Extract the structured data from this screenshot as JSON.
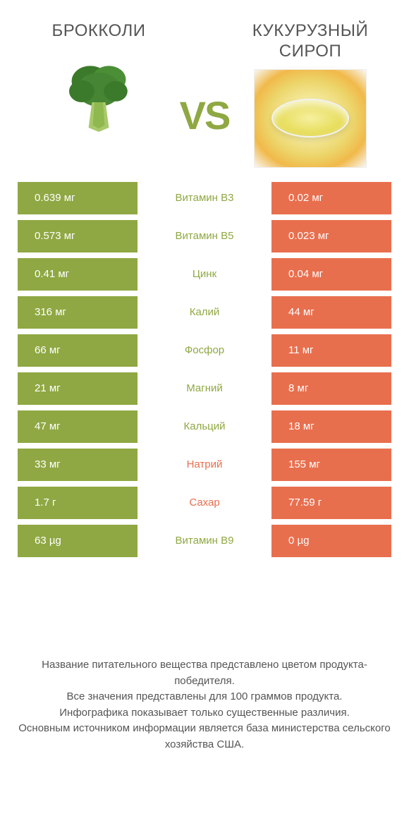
{
  "colors": {
    "left": "#8fa843",
    "right": "#e86f4e",
    "vs": "#8fa843",
    "background": "#ffffff",
    "text": "#555555"
  },
  "header": {
    "left_title": "Брокколи",
    "right_title": "Кукурузный сироп",
    "vs": "VS"
  },
  "rows": [
    {
      "left": "0.639 мг",
      "label": "Витамин B3",
      "right": "0.02 мг",
      "winner": "left"
    },
    {
      "left": "0.573 мг",
      "label": "Витамин B5",
      "right": "0.023 мг",
      "winner": "left"
    },
    {
      "left": "0.41 мг",
      "label": "Цинк",
      "right": "0.04 мг",
      "winner": "left"
    },
    {
      "left": "316 мг",
      "label": "Калий",
      "right": "44 мг",
      "winner": "left"
    },
    {
      "left": "66 мг",
      "label": "Фосфор",
      "right": "11 мг",
      "winner": "left"
    },
    {
      "left": "21 мг",
      "label": "Магний",
      "right": "8 мг",
      "winner": "left"
    },
    {
      "left": "47 мг",
      "label": "Кальций",
      "right": "18 мг",
      "winner": "left"
    },
    {
      "left": "33 мг",
      "label": "Натрий",
      "right": "155 мг",
      "winner": "right"
    },
    {
      "left": "1.7 г",
      "label": "Сахар",
      "right": "77.59 г",
      "winner": "right"
    },
    {
      "left": "63 µg",
      "label": "Витамин B9",
      "right": "0 µg",
      "winner": "left"
    }
  ],
  "footer": {
    "line1": "Название питательного вещества представлено цветом продукта-победителя.",
    "line2": "Все значения представлены для 100 граммов продукта.",
    "line3": "Инфографика показывает только существенные различия.",
    "line4": "Основным источником информации является база министерства сельского хозяйства США."
  }
}
